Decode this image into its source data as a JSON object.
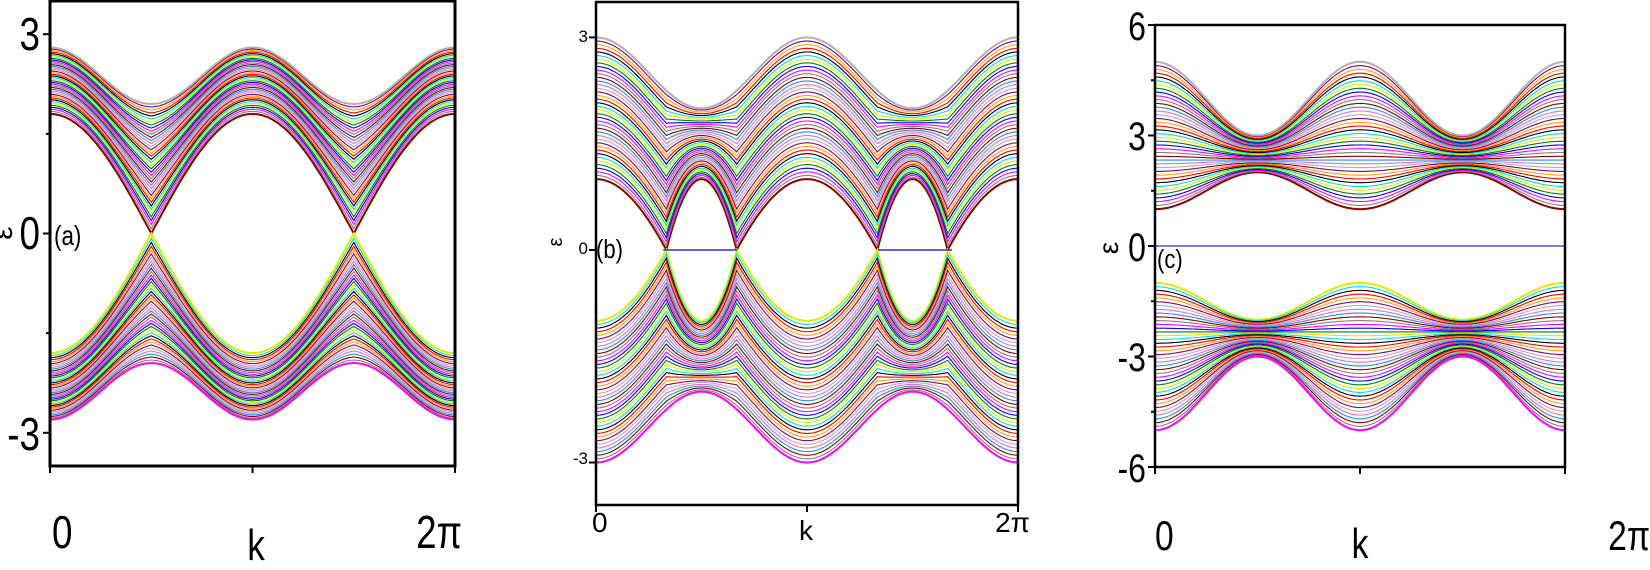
{
  "chart_data": [
    {
      "type": "line",
      "panel_label": "(a)",
      "xlabel": "k",
      "ylabel": "ε",
      "x_ticks": [
        "0",
        "2π"
      ],
      "y_ticks": [
        "3",
        "0",
        "-3"
      ],
      "ylim": [
        -3.5,
        3.5
      ],
      "xlim": [
        0,
        6.283
      ],
      "grid": false,
      "band_edges": {
        "k": [
          0,
          1.571,
          3.142,
          4.712,
          6.283
        ],
        "upper_band_top": [
          2.8,
          1.95,
          2.8,
          1.95,
          2.8
        ],
        "upper_band_bottom": [
          1.8,
          0.0,
          1.8,
          0.0,
          1.8
        ],
        "lower_band_top": [
          -1.8,
          0.0,
          -1.8,
          0.0,
          -1.8
        ],
        "lower_band_bottom": [
          -2.8,
          -1.95,
          -2.8,
          -1.95,
          -2.8
        ]
      }
    },
    {
      "type": "line",
      "panel_label": "(b)",
      "xlabel": "k",
      "ylabel": "ε",
      "x_ticks": [
        "0",
        "2π"
      ],
      "y_ticks": [
        "3",
        "0",
        "-3"
      ],
      "ylim": [
        -3.6,
        3.5
      ],
      "xlim": [
        0,
        6.283
      ],
      "grid": false,
      "band_edges": {
        "k": [
          0,
          1.571,
          3.142,
          4.712,
          6.283
        ],
        "upper_band_top": [
          3.0,
          2.0,
          3.0,
          2.0,
          3.0
        ],
        "upper_band_bottom": [
          1.0,
          1.0,
          1.0,
          1.0,
          1.0
        ],
        "lower_band_top": [
          -1.0,
          -1.0,
          -1.0,
          -1.0,
          -1.0
        ],
        "lower_band_bottom": [
          -3.0,
          -2.0,
          -3.0,
          -2.0,
          -3.0
        ]
      },
      "zero_mode_k_ranges": [
        [
          1.0,
          2.1
        ],
        [
          4.2,
          5.3
        ]
      ]
    },
    {
      "type": "line",
      "panel_label": "(c)",
      "xlabel": "k",
      "ylabel": "ε",
      "x_ticks": [
        "0",
        "2π"
      ],
      "y_ticks": [
        "6",
        "3",
        "0",
        "-3",
        "-6"
      ],
      "ylim": [
        -6,
        6
      ],
      "xlim": [
        0,
        6.283
      ],
      "grid": false,
      "band_edges": {
        "k": [
          0,
          1.571,
          3.142,
          4.712,
          6.283
        ],
        "upper_band_top": [
          5.0,
          3.0,
          5.0,
          3.0,
          5.0
        ],
        "upper_band_bottom": [
          1.0,
          2.0,
          1.0,
          2.0,
          1.0
        ],
        "lower_band_top": [
          -1.0,
          -2.0,
          -1.0,
          -2.0,
          -1.0
        ],
        "lower_band_bottom": [
          -5.0,
          -3.0,
          -5.0,
          -3.0,
          -5.0
        ]
      },
      "flat_band": 0
    }
  ],
  "colors": {
    "palette": [
      "#8b0000",
      "#808080",
      "#ff00ff",
      "#0000ff",
      "#008000",
      "#e6e600",
      "#00e0e0",
      "#000000",
      "#ff0000",
      "#ffa500",
      "#800080",
      "#b0b0b0",
      "#ff69b4",
      "#1e90ff"
    ],
    "zero_mode": "#3030c0",
    "axis": "#000000"
  }
}
